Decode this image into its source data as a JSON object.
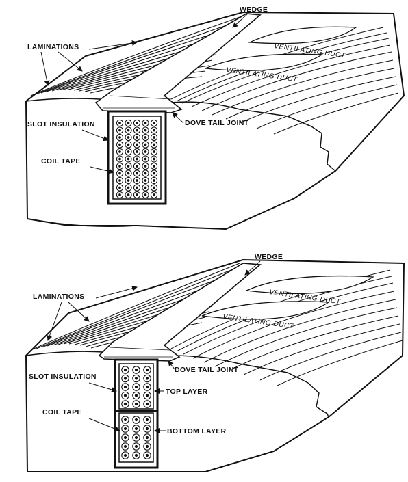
{
  "top_diagram": {
    "wedge": "WEDGE",
    "laminations": "LAMINATIONS",
    "duct_1": "VENTILATING DUCT",
    "duct_2": "VENTILATING DUCT",
    "dovetail": "DOVE TAIL JOINT",
    "slot_insulation": "SLOT INSULATION",
    "coil_tape": "COIL TAPE"
  },
  "bottom_diagram": {
    "wedge": "WEDGE",
    "laminations": "LAMINATIONS",
    "duct_1": "VENTILATING DUCT",
    "duct_2": "VENTILATING DUCT",
    "dovetail": "DOVE TAIL JOINT",
    "slot_insulation": "SLOT INSULATION",
    "top_layer": "TOP LAYER",
    "coil_tape": "COIL TAPE",
    "bottom_layer": "BOTTOM LAYER"
  },
  "colors": {
    "ink": "#111111",
    "paper": "#ffffff"
  }
}
